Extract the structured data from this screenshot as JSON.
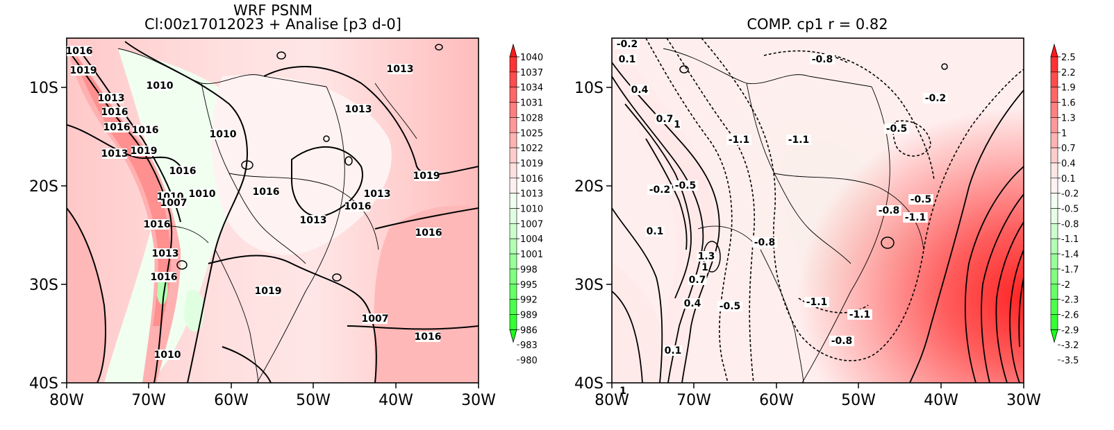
{
  "panels": [
    {
      "title_line1": "WRF PSNM",
      "title_line2": "Cl:00z17012023 + Analise  [p3 d-0]",
      "x_ticks": [
        "80W",
        "70W",
        "60W",
        "50W",
        "40W",
        "30W"
      ],
      "y_ticks": [
        "10S",
        "20S",
        "30S",
        "40S"
      ],
      "colorbar_labels": [
        "1040",
        "1037",
        "1034",
        "1031",
        "1028",
        "1025",
        "1022",
        "1019",
        "1016",
        "1013",
        "1010",
        "1007",
        "1004",
        "1001",
        "998",
        "995",
        "992",
        "989",
        "986",
        "983",
        "980"
      ],
      "contour_labels": [
        "1016",
        "1019",
        "1010",
        "1013",
        "1016",
        "1016",
        "1013",
        "1019",
        "1016",
        "1010",
        "1013",
        "1013",
        "1016",
        "1010",
        "1007",
        "1016",
        "1013",
        "1016",
        "1016",
        "1013",
        "1010",
        "1013",
        "1019",
        "1016",
        "1016",
        "1019",
        "1007",
        "1016",
        "1010"
      ]
    },
    {
      "title": "COMP. cp1  r =  0.82",
      "x_ticks": [
        "80W",
        "70W",
        "60W",
        "50W",
        "40W",
        "30W"
      ],
      "y_ticks": [
        "10S",
        "20S",
        "30S",
        "40S"
      ],
      "colorbar_labels": [
        "2.5",
        "2.2",
        "1.9",
        "1.6",
        "1.3",
        "1",
        "0.7",
        "0.4",
        "0.1",
        "-0.2",
        "-0.5",
        "-0.8",
        "-1.1",
        "-1.4",
        "-1.7",
        "-2",
        "-2.3",
        "-2.6",
        "-2.9",
        "-3.2",
        "-3.5"
      ],
      "contour_labels": [
        "-0.2",
        "0.1",
        "0.4",
        "0.7",
        "1",
        "-1.1",
        "-1.1",
        "-0.8",
        "-0.2",
        "-0.5",
        "-0.2",
        "-0.5",
        "0.1",
        "-0.8",
        "-0.5",
        "-0.8",
        "-1.1",
        "1.3",
        "1",
        "0.7",
        "0.4",
        "-0.5",
        "-1.1",
        "-1.1",
        "-0.8",
        "0.1",
        "1"
      ]
    }
  ],
  "colors": {
    "pressure_scale": [
      "#ff1a1a",
      "#ff3333",
      "#ff4d4d",
      "#ff6666",
      "#ff7f7f",
      "#ff9999",
      "#ffb3b3",
      "#ffcccc",
      "#ffe0e0",
      "#fff0f0",
      "#f0fff0",
      "#e0ffe0",
      "#ccffcc",
      "#b3ffb3",
      "#99ff99",
      "#80ff80",
      "#66ff66",
      "#4dff4d",
      "#33ff33",
      "#1aff1a"
    ],
    "comp_scale": [
      "#ff1a1a",
      "#ff3333",
      "#ff4d4d",
      "#ff6666",
      "#ff8080",
      "#ff9999",
      "#ffb3b3",
      "#ffcccc",
      "#ffe6e6",
      "#fff2f2",
      "#f2fff2",
      "#e6ffe6",
      "#ccffcc",
      "#b3ffb3",
      "#99ff99",
      "#80ff80",
      "#66ff66",
      "#4dff4d",
      "#33ff33",
      "#1aff1a"
    ]
  }
}
